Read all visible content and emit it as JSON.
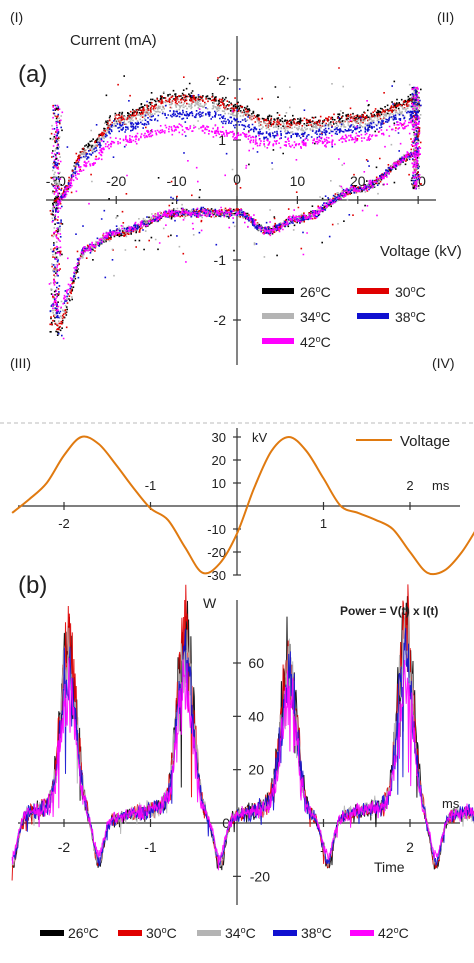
{
  "panel_a": {
    "label": "(a)",
    "quadrants": [
      "(I)",
      "(II)",
      "(III)",
      "(IV)"
    ],
    "x_label": "Voltage (kV)",
    "y_label": "Current (mA)"
  },
  "panel_b": {
    "label": "(b)",
    "power_title": "Power = V(t) x I(t)",
    "power_y_unit": "W",
    "power_x_unit": "ms",
    "time_label": "Time",
    "voltage_y_unit": "kV",
    "voltage_x_unit": "ms",
    "voltage_legend": "Voltage"
  },
  "colors": {
    "c26": "#000000",
    "c30": "#e00000",
    "c34": "#b4b4b4",
    "c38": "#1010d0",
    "c42": "#ff00ff",
    "voltage": "#e07a10"
  },
  "chart_data": [
    {
      "type": "scatter",
      "name": "Current-voltage Lissajous",
      "xlabel": "Voltage (kV)",
      "ylabel": "Current (mA)",
      "xlim": [
        -32,
        32
      ],
      "ylim": [
        -2.6,
        2.5
      ],
      "x_ticks": [
        -30,
        -20,
        -10,
        0,
        10,
        20,
        30
      ],
      "y_ticks": [
        -2,
        -1,
        1,
        2
      ],
      "x_tick_labels": [
        "-30",
        "-20",
        "-10",
        "0",
        "10",
        "20",
        "30"
      ],
      "y_tick_labels": [
        "-2",
        "-1",
        "1",
        "2"
      ],
      "legend_placement": "lower-right",
      "series": [
        {
          "name": "26°C",
          "upper_branch": [
            [
              -30,
              0.0
            ],
            [
              -25,
              0.9
            ],
            [
              -20,
              1.4
            ],
            [
              -10,
              1.75
            ],
            [
              -5,
              1.72
            ],
            [
              0,
              1.55
            ],
            [
              5,
              1.35
            ],
            [
              10,
              1.3
            ],
            [
              20,
              1.4
            ],
            [
              30,
              1.7
            ]
          ],
          "lower_branch": [
            [
              -30,
              -2.2
            ],
            [
              -25,
              -0.8
            ],
            [
              -20,
              -0.55
            ],
            [
              -10,
              -0.2
            ],
            [
              0,
              -0.2
            ],
            [
              5,
              -0.5
            ],
            [
              10,
              -0.3
            ],
            [
              20,
              0.2
            ],
            [
              30,
              0.8
            ]
          ]
        },
        {
          "name": "30°C",
          "upper_branch": [
            [
              -30,
              0.0
            ],
            [
              -25,
              0.85
            ],
            [
              -20,
              1.35
            ],
            [
              -10,
              1.7
            ],
            [
              -5,
              1.7
            ],
            [
              0,
              1.52
            ],
            [
              5,
              1.3
            ],
            [
              10,
              1.28
            ],
            [
              20,
              1.38
            ],
            [
              30,
              1.65
            ]
          ],
          "lower_branch": [
            [
              -30,
              -2.1
            ],
            [
              -25,
              -0.8
            ],
            [
              -20,
              -0.55
            ],
            [
              -10,
              -0.2
            ],
            [
              0,
              -0.2
            ],
            [
              5,
              -0.5
            ],
            [
              10,
              -0.3
            ],
            [
              20,
              0.2
            ],
            [
              30,
              0.8
            ]
          ]
        },
        {
          "name": "34°C",
          "upper_branch": [
            [
              -30,
              0.0
            ],
            [
              -25,
              0.8
            ],
            [
              -20,
              1.3
            ],
            [
              -10,
              1.6
            ],
            [
              -5,
              1.6
            ],
            [
              0,
              1.45
            ],
            [
              5,
              1.25
            ],
            [
              10,
              1.2
            ],
            [
              20,
              1.3
            ],
            [
              30,
              1.55
            ]
          ],
          "lower_branch": [
            [
              -30,
              -2.0
            ],
            [
              -25,
              -0.8
            ],
            [
              -20,
              -0.5
            ],
            [
              -10,
              -0.2
            ],
            [
              0,
              -0.2
            ],
            [
              5,
              -0.5
            ],
            [
              10,
              -0.3
            ],
            [
              20,
              0.2
            ],
            [
              30,
              0.8
            ]
          ]
        },
        {
          "name": "38°C",
          "upper_branch": [
            [
              -30,
              0.0
            ],
            [
              -25,
              0.75
            ],
            [
              -20,
              1.2
            ],
            [
              -10,
              1.45
            ],
            [
              -5,
              1.45
            ],
            [
              0,
              1.3
            ],
            [
              5,
              1.1
            ],
            [
              10,
              1.1
            ],
            [
              20,
              1.2
            ],
            [
              30,
              1.45
            ]
          ],
          "lower_branch": [
            [
              -30,
              -1.9
            ],
            [
              -25,
              -0.8
            ],
            [
              -20,
              -0.5
            ],
            [
              -10,
              -0.2
            ],
            [
              0,
              -0.2
            ],
            [
              5,
              -0.5
            ],
            [
              10,
              -0.3
            ],
            [
              20,
              0.2
            ],
            [
              30,
              0.8
            ]
          ]
        },
        {
          "name": "42°C",
          "upper_branch": [
            [
              -30,
              0.0
            ],
            [
              -25,
              0.6
            ],
            [
              -20,
              1.0
            ],
            [
              -10,
              1.2
            ],
            [
              -5,
              1.2
            ],
            [
              0,
              1.1
            ],
            [
              5,
              0.95
            ],
            [
              10,
              0.95
            ],
            [
              20,
              1.05
            ],
            [
              30,
              1.3
            ]
          ],
          "lower_branch": [
            [
              -30,
              -1.8
            ],
            [
              -25,
              -0.8
            ],
            [
              -20,
              -0.5
            ],
            [
              -10,
              -0.2
            ],
            [
              0,
              -0.2
            ],
            [
              5,
              -0.5
            ],
            [
              10,
              -0.3
            ],
            [
              20,
              0.2
            ],
            [
              30,
              0.8
            ]
          ]
        }
      ]
    },
    {
      "type": "line",
      "name": "Voltage waveform",
      "xlabel": "ms",
      "ylabel": "kV",
      "xlim": [
        -2.6,
        2.9
      ],
      "ylim": [
        -33,
        33
      ],
      "x_ticks": [
        -2,
        -1,
        1,
        2
      ],
      "y_ticks": [
        30,
        20,
        10,
        -10,
        -20,
        -30
      ],
      "x_tick_labels": [
        "-2",
        "-1",
        "1",
        "2"
      ],
      "y_tick_labels": [
        "30",
        "20",
        "10",
        "-10",
        "-20",
        "-30"
      ],
      "legend_placement": "top-right",
      "series": [
        {
          "name": "Voltage",
          "x": [
            -2.6,
            -2.4,
            -2.2,
            -2.0,
            -1.8,
            -1.6,
            -1.4,
            -1.2,
            -1.0,
            -0.8,
            -0.6,
            -0.4,
            -0.2,
            0.0,
            0.2,
            0.4,
            0.6,
            0.8,
            1.0,
            1.2,
            1.4,
            1.6,
            1.8,
            2.0,
            2.2,
            2.4,
            2.6,
            2.8,
            2.9
          ],
          "values": [
            -3,
            3,
            10,
            22,
            30,
            27,
            18,
            8,
            -1,
            -6,
            -18,
            -29,
            -25,
            -12,
            8,
            24,
            30,
            24,
            12,
            0,
            -3,
            -6,
            -10,
            -20,
            -29,
            -28,
            -20,
            -8,
            -2
          ]
        }
      ]
    },
    {
      "type": "line",
      "name": "Power",
      "title": "Power = V(t) x I(t)",
      "xlabel": "Time",
      "ylabel": "W",
      "xlim": [
        -2.6,
        2.9
      ],
      "ylim": [
        -27,
        90
      ],
      "x_ticks": [
        -2,
        -1,
        1,
        2
      ],
      "y_ticks": [
        0,
        20,
        40,
        60,
        -20
      ],
      "x_tick_labels": [
        "-2",
        "-1",
        "1",
        "2"
      ],
      "y_tick_labels": [
        "0",
        "20",
        "40",
        "60",
        "-20"
      ],
      "legend_placement": "bottom",
      "series": [
        {
          "name": "26°C",
          "peaks_ms": [
            -1.95,
            -0.6,
            0.6,
            1.95
          ],
          "peak_values": [
            62,
            70,
            58,
            72
          ],
          "min_value": -22
        },
        {
          "name": "30°C",
          "peaks_ms": [
            -1.95,
            -0.6,
            0.6,
            1.95
          ],
          "peak_values": [
            60,
            68,
            56,
            70
          ],
          "min_value": -21
        },
        {
          "name": "34°C",
          "peaks_ms": [
            -1.95,
            -0.6,
            0.6,
            1.95
          ],
          "peak_values": [
            55,
            62,
            52,
            64
          ],
          "min_value": -20
        },
        {
          "name": "38°C",
          "peaks_ms": [
            -1.95,
            -0.6,
            0.6,
            1.95
          ],
          "peak_values": [
            50,
            56,
            48,
            58
          ],
          "min_value": -19
        },
        {
          "name": "42°C",
          "peaks_ms": [
            -1.95,
            -0.6,
            0.6,
            1.95
          ],
          "peak_values": [
            42,
            48,
            40,
            48
          ],
          "min_value": -17
        }
      ]
    }
  ],
  "legend_a": [
    {
      "label": "26",
      "color_key": "c26"
    },
    {
      "label": "30",
      "color_key": "c30"
    },
    {
      "label": "34",
      "color_key": "c34"
    },
    {
      "label": "38",
      "color_key": "c38"
    },
    {
      "label": "42",
      "color_key": "c42"
    }
  ],
  "legend_b": [
    {
      "label": "26",
      "color_key": "c26"
    },
    {
      "label": "30",
      "color_key": "c30"
    },
    {
      "label": "34",
      "color_key": "c34"
    },
    {
      "label": "38",
      "color_key": "c38"
    },
    {
      "label": "42",
      "color_key": "c42"
    }
  ],
  "unit_suffix": "C",
  "degree_mark": "o"
}
